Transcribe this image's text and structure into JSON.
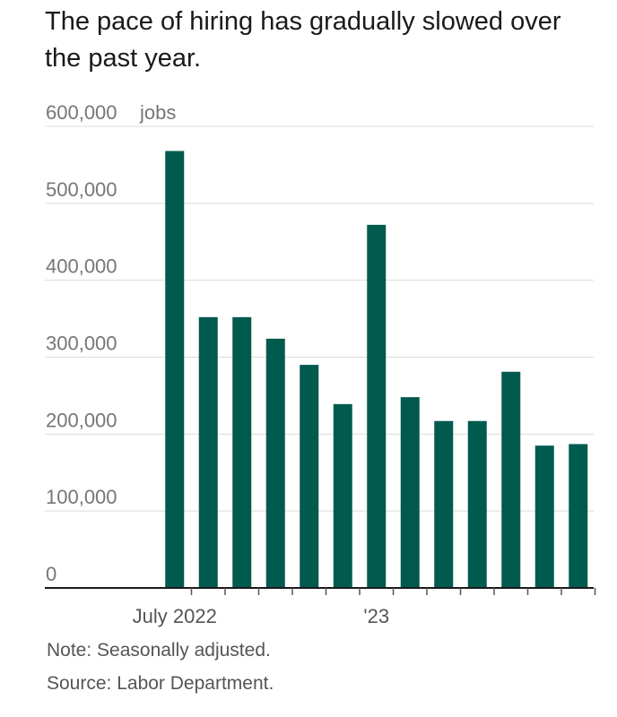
{
  "chart_data": {
    "type": "bar",
    "title": "The pace of hiring has gradually slowed over the past year.",
    "ylabel_unit": "jobs",
    "ylim": [
      0,
      600000
    ],
    "yticks": [
      0,
      100000,
      200000,
      300000,
      400000,
      500000,
      600000
    ],
    "ytick_labels": [
      "0",
      "100,000",
      "200,000",
      "300,000",
      "400,000",
      "500,000",
      "600,000"
    ],
    "x_tick_labels": [
      {
        "label": "July 2022",
        "at_category": "2022-07"
      },
      {
        "label": "'23",
        "at_category": "2023-01"
      }
    ],
    "categories": [
      "2022-07",
      "2022-08",
      "2022-09",
      "2022-10",
      "2022-11",
      "2022-12",
      "2023-01",
      "2023-02",
      "2023-03",
      "2023-04",
      "2023-05",
      "2023-06",
      "2023-07"
    ],
    "values": [
      568000,
      352000,
      352000,
      324000,
      290000,
      239000,
      472000,
      248000,
      217000,
      217000,
      281000,
      185000,
      187000
    ],
    "color": "#005a4e",
    "grid": true,
    "legend": "none"
  },
  "notes": {
    "note": "Note: Seasonally adjusted.",
    "source": "Source: Labor Department."
  }
}
